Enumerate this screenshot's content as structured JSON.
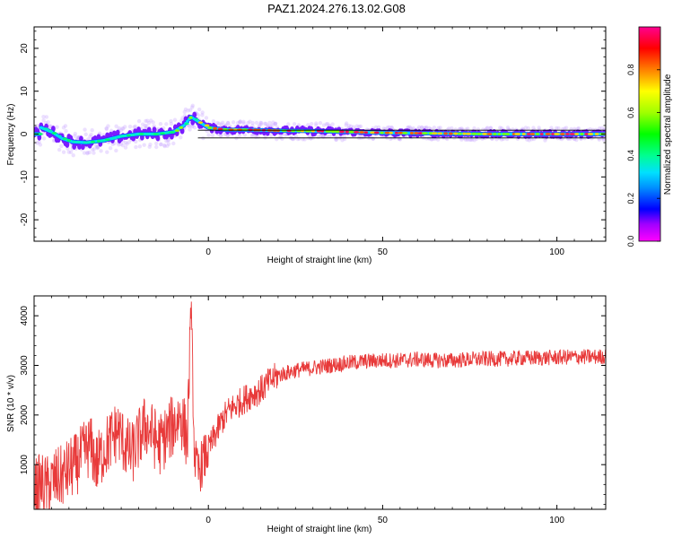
{
  "title": "PAZ1.2024.276.13.02.G08",
  "chart_data": [
    {
      "type": "heatmap",
      "xlabel": "Height of straight line (km)",
      "ylabel": "Frequency (Hz)",
      "xlim": [
        -50,
        114
      ],
      "ylim": [
        -25,
        25
      ],
      "xticks": [
        0,
        50,
        100
      ],
      "yticks": [
        -20,
        -10,
        0,
        10,
        20
      ],
      "colorbar": {
        "label": "Normalized spectral amplitude",
        "ticks": [
          0.0,
          0.2,
          0.4,
          0.6,
          0.8
        ],
        "range": [
          0,
          1
        ],
        "colormap": [
          "#ff00ff",
          "#8000ff",
          "#0000ff",
          "#00c8ff",
          "#00ff80",
          "#00ff00",
          "#c8ff00",
          "#ffff00",
          "#ff8000",
          "#ff0000",
          "#ff0080"
        ]
      },
      "ridge": [
        {
          "x": -48,
          "y": 1.5
        },
        {
          "x": -45,
          "y": 0.5
        },
        {
          "x": -42,
          "y": -1
        },
        {
          "x": -39,
          "y": -1.8
        },
        {
          "x": -35,
          "y": -2
        },
        {
          "x": -30,
          "y": -1.5
        },
        {
          "x": -25,
          "y": -0.5
        },
        {
          "x": -20,
          "y": 0
        },
        {
          "x": -15,
          "y": 0
        },
        {
          "x": -10,
          "y": 0.5
        },
        {
          "x": -7,
          "y": 2
        },
        {
          "x": -5,
          "y": 4
        },
        {
          "x": -3,
          "y": 3
        },
        {
          "x": 0,
          "y": 1.5
        },
        {
          "x": 5,
          "y": 1
        },
        {
          "x": 10,
          "y": 1
        },
        {
          "x": 20,
          "y": 0.8
        },
        {
          "x": 30,
          "y": 0.7
        },
        {
          "x": 40,
          "y": 0.5
        },
        {
          "x": 50,
          "y": 0.3
        },
        {
          "x": 60,
          "y": 0.2
        },
        {
          "x": 70,
          "y": 0.1
        },
        {
          "x": 80,
          "y": 0
        },
        {
          "x": 90,
          "y": 0
        },
        {
          "x": 100,
          "y": 0
        },
        {
          "x": 110,
          "y": 0
        },
        {
          "x": 114,
          "y": 0
        }
      ]
    },
    {
      "type": "line",
      "xlabel": "Height of straight line (km)",
      "ylabel": "SNR (10 * v/v)",
      "xlim": [
        -50,
        114
      ],
      "ylim": [
        100,
        4400
      ],
      "xticks": [
        0,
        50,
        100
      ],
      "yticks": [
        1000,
        2000,
        3000,
        4000
      ],
      "color": "#e83a3a",
      "series": [
        {
          "x": [
            -50,
            -48,
            -46,
            -44,
            -42,
            -40,
            -38,
            -36,
            -34,
            -32,
            -30,
            -28,
            -26,
            -24,
            -22,
            -20,
            -18,
            -16,
            -14,
            -12,
            -10,
            -8,
            -6,
            -5,
            -4,
            -3,
            -2,
            0,
            2,
            4,
            6,
            8,
            10,
            12,
            15,
            18,
            20,
            25,
            30,
            35,
            40,
            45,
            50,
            55,
            60,
            65,
            70,
            75,
            80,
            85,
            90,
            95,
            100,
            105,
            110,
            114
          ],
          "values": [
            500,
            600,
            550,
            700,
            750,
            900,
            1000,
            1200,
            1400,
            1000,
            1300,
            1500,
            1700,
            1400,
            1200,
            1500,
            1800,
            1600,
            1400,
            1600,
            1800,
            2000,
            1500,
            4300,
            1200,
            800,
            1000,
            1300,
            1600,
            1900,
            2100,
            2200,
            2300,
            2400,
            2500,
            2700,
            2800,
            2900,
            2950,
            3000,
            3050,
            3080,
            3100,
            3100,
            3120,
            3100,
            3100,
            3120,
            3130,
            3130,
            3150,
            3150,
            3160,
            3170,
            3170,
            3180
          ]
        }
      ]
    }
  ]
}
